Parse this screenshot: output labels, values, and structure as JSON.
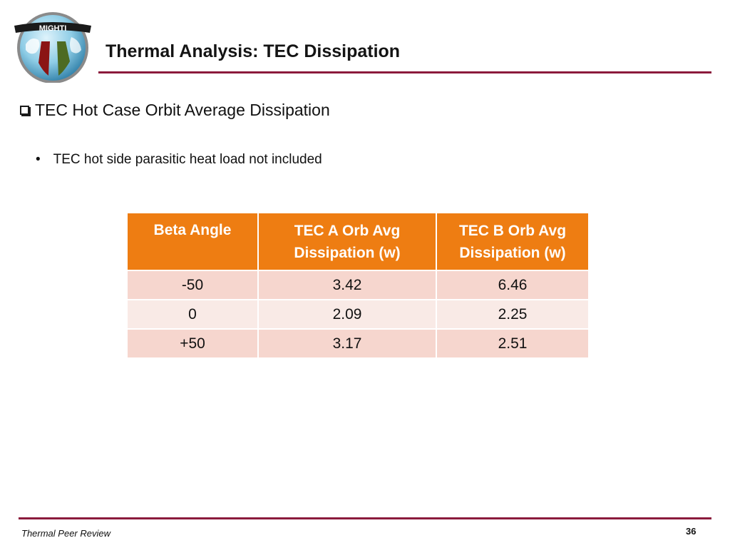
{
  "logo": {
    "text": "MIGHTI"
  },
  "slide": {
    "title": "Thermal Analysis:  TEC Dissipation",
    "heading": "TEC Hot Case Orbit Average Dissipation",
    "bullet": "TEC hot side parasitic heat load not included"
  },
  "table": {
    "headers": [
      "Beta Angle",
      "TEC A Orb Avg Dissipation (w)",
      "TEC B Orb Avg Dissipation (w)"
    ],
    "rows": [
      [
        "-50",
        "3.42",
        "6.46"
      ],
      [
        "0",
        "2.09",
        "2.25"
      ],
      [
        "+50",
        "3.17",
        "2.51"
      ]
    ]
  },
  "footer": {
    "text": "Thermal Peer Review",
    "page_number": "36"
  },
  "colors": {
    "title_rule": "#8b1a3c",
    "header_fill": "#ee7d12",
    "row_fill_odd": "#f6d6ce",
    "row_fill_even": "#f9eae6"
  }
}
